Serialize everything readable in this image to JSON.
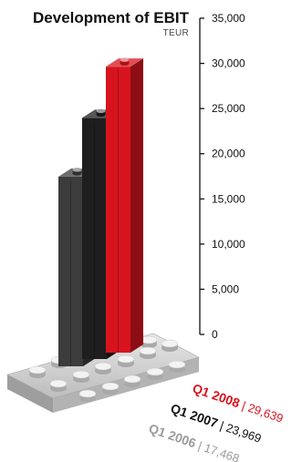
{
  "chart_data": {
    "type": "bar",
    "title": "Development of EBIT",
    "unit": "TEUR",
    "ylim": [
      0,
      35000
    ],
    "yticks": [
      0,
      5000,
      10000,
      15000,
      20000,
      25000,
      30000,
      35000
    ],
    "ytick_labels": [
      "0",
      "5,000",
      "10,000",
      "15,000",
      "20,000",
      "25,000",
      "30,000",
      "35,000"
    ],
    "categories": [
      "Q1 2006",
      "Q1 2007",
      "Q1 2008"
    ],
    "values": [
      17468,
      23969,
      29639
    ],
    "value_labels": [
      "17,468",
      "23,969",
      "29,639"
    ],
    "colors": [
      "#3c3c3c",
      "#1e1e1e",
      "#d7141e"
    ],
    "label_colors": [
      "#9a9a9a",
      "#111111",
      "#d7141e"
    ],
    "grid": false
  }
}
